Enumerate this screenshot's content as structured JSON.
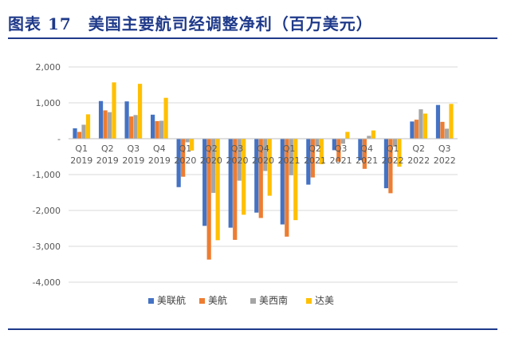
{
  "figure": {
    "title": "图表 17　美国主要航司经调整净利（百万美元）"
  },
  "chart_data": {
    "type": "bar",
    "categories": [
      [
        "Q1",
        "2019"
      ],
      [
        "Q2",
        "2019"
      ],
      [
        "Q3",
        "2019"
      ],
      [
        "Q4",
        "2019"
      ],
      [
        "Q1",
        "2020"
      ],
      [
        "Q2",
        "2020"
      ],
      [
        "Q3",
        "2020"
      ],
      [
        "Q4",
        "2020"
      ],
      [
        "Q1",
        "2021"
      ],
      [
        "Q2",
        "2021"
      ],
      [
        "Q3",
        "2021"
      ],
      [
        "Q4",
        "2021"
      ],
      [
        "Q1",
        "2022"
      ],
      [
        "Q2",
        "2022"
      ],
      [
        "Q3",
        "2022"
      ]
    ],
    "series": [
      {
        "name": "美联航",
        "color": "#4472C4",
        "values": [
          290,
          1050,
          1040,
          670,
          -1350,
          -2430,
          -2480,
          -2060,
          -2390,
          -1280,
          -320,
          -600,
          -1380,
          480,
          940
        ]
      },
      {
        "name": "美航",
        "color": "#ED7D31",
        "values": [
          190,
          790,
          620,
          490,
          -1060,
          -3370,
          -2820,
          -2210,
          -2730,
          -1080,
          -640,
          -840,
          -1520,
          530,
          470
        ]
      },
      {
        "name": "美西南",
        "color": "#A5A5A5",
        "values": [
          390,
          740,
          660,
          500,
          -100,
          -1510,
          -1170,
          -900,
          -1020,
          -210,
          -140,
          80,
          -220,
          820,
          280
        ]
      },
      {
        "name": "达美",
        "color": "#FFC000",
        "values": [
          680,
          1570,
          1530,
          1140,
          -330,
          -2830,
          -2120,
          -1590,
          -2270,
          -710,
          190,
          230,
          -780,
          700,
          970
        ]
      }
    ],
    "y_ticks": [
      "2,000",
      "1,000",
      "-",
      "-1,000",
      "-2,000",
      "-3,000",
      "-4,000"
    ],
    "y_tick_values": [
      2000,
      1000,
      0,
      -1000,
      -2000,
      -3000,
      -4000
    ],
    "ylim": [
      -4000,
      2000
    ],
    "grid": true,
    "legend_position": "bottom"
  }
}
